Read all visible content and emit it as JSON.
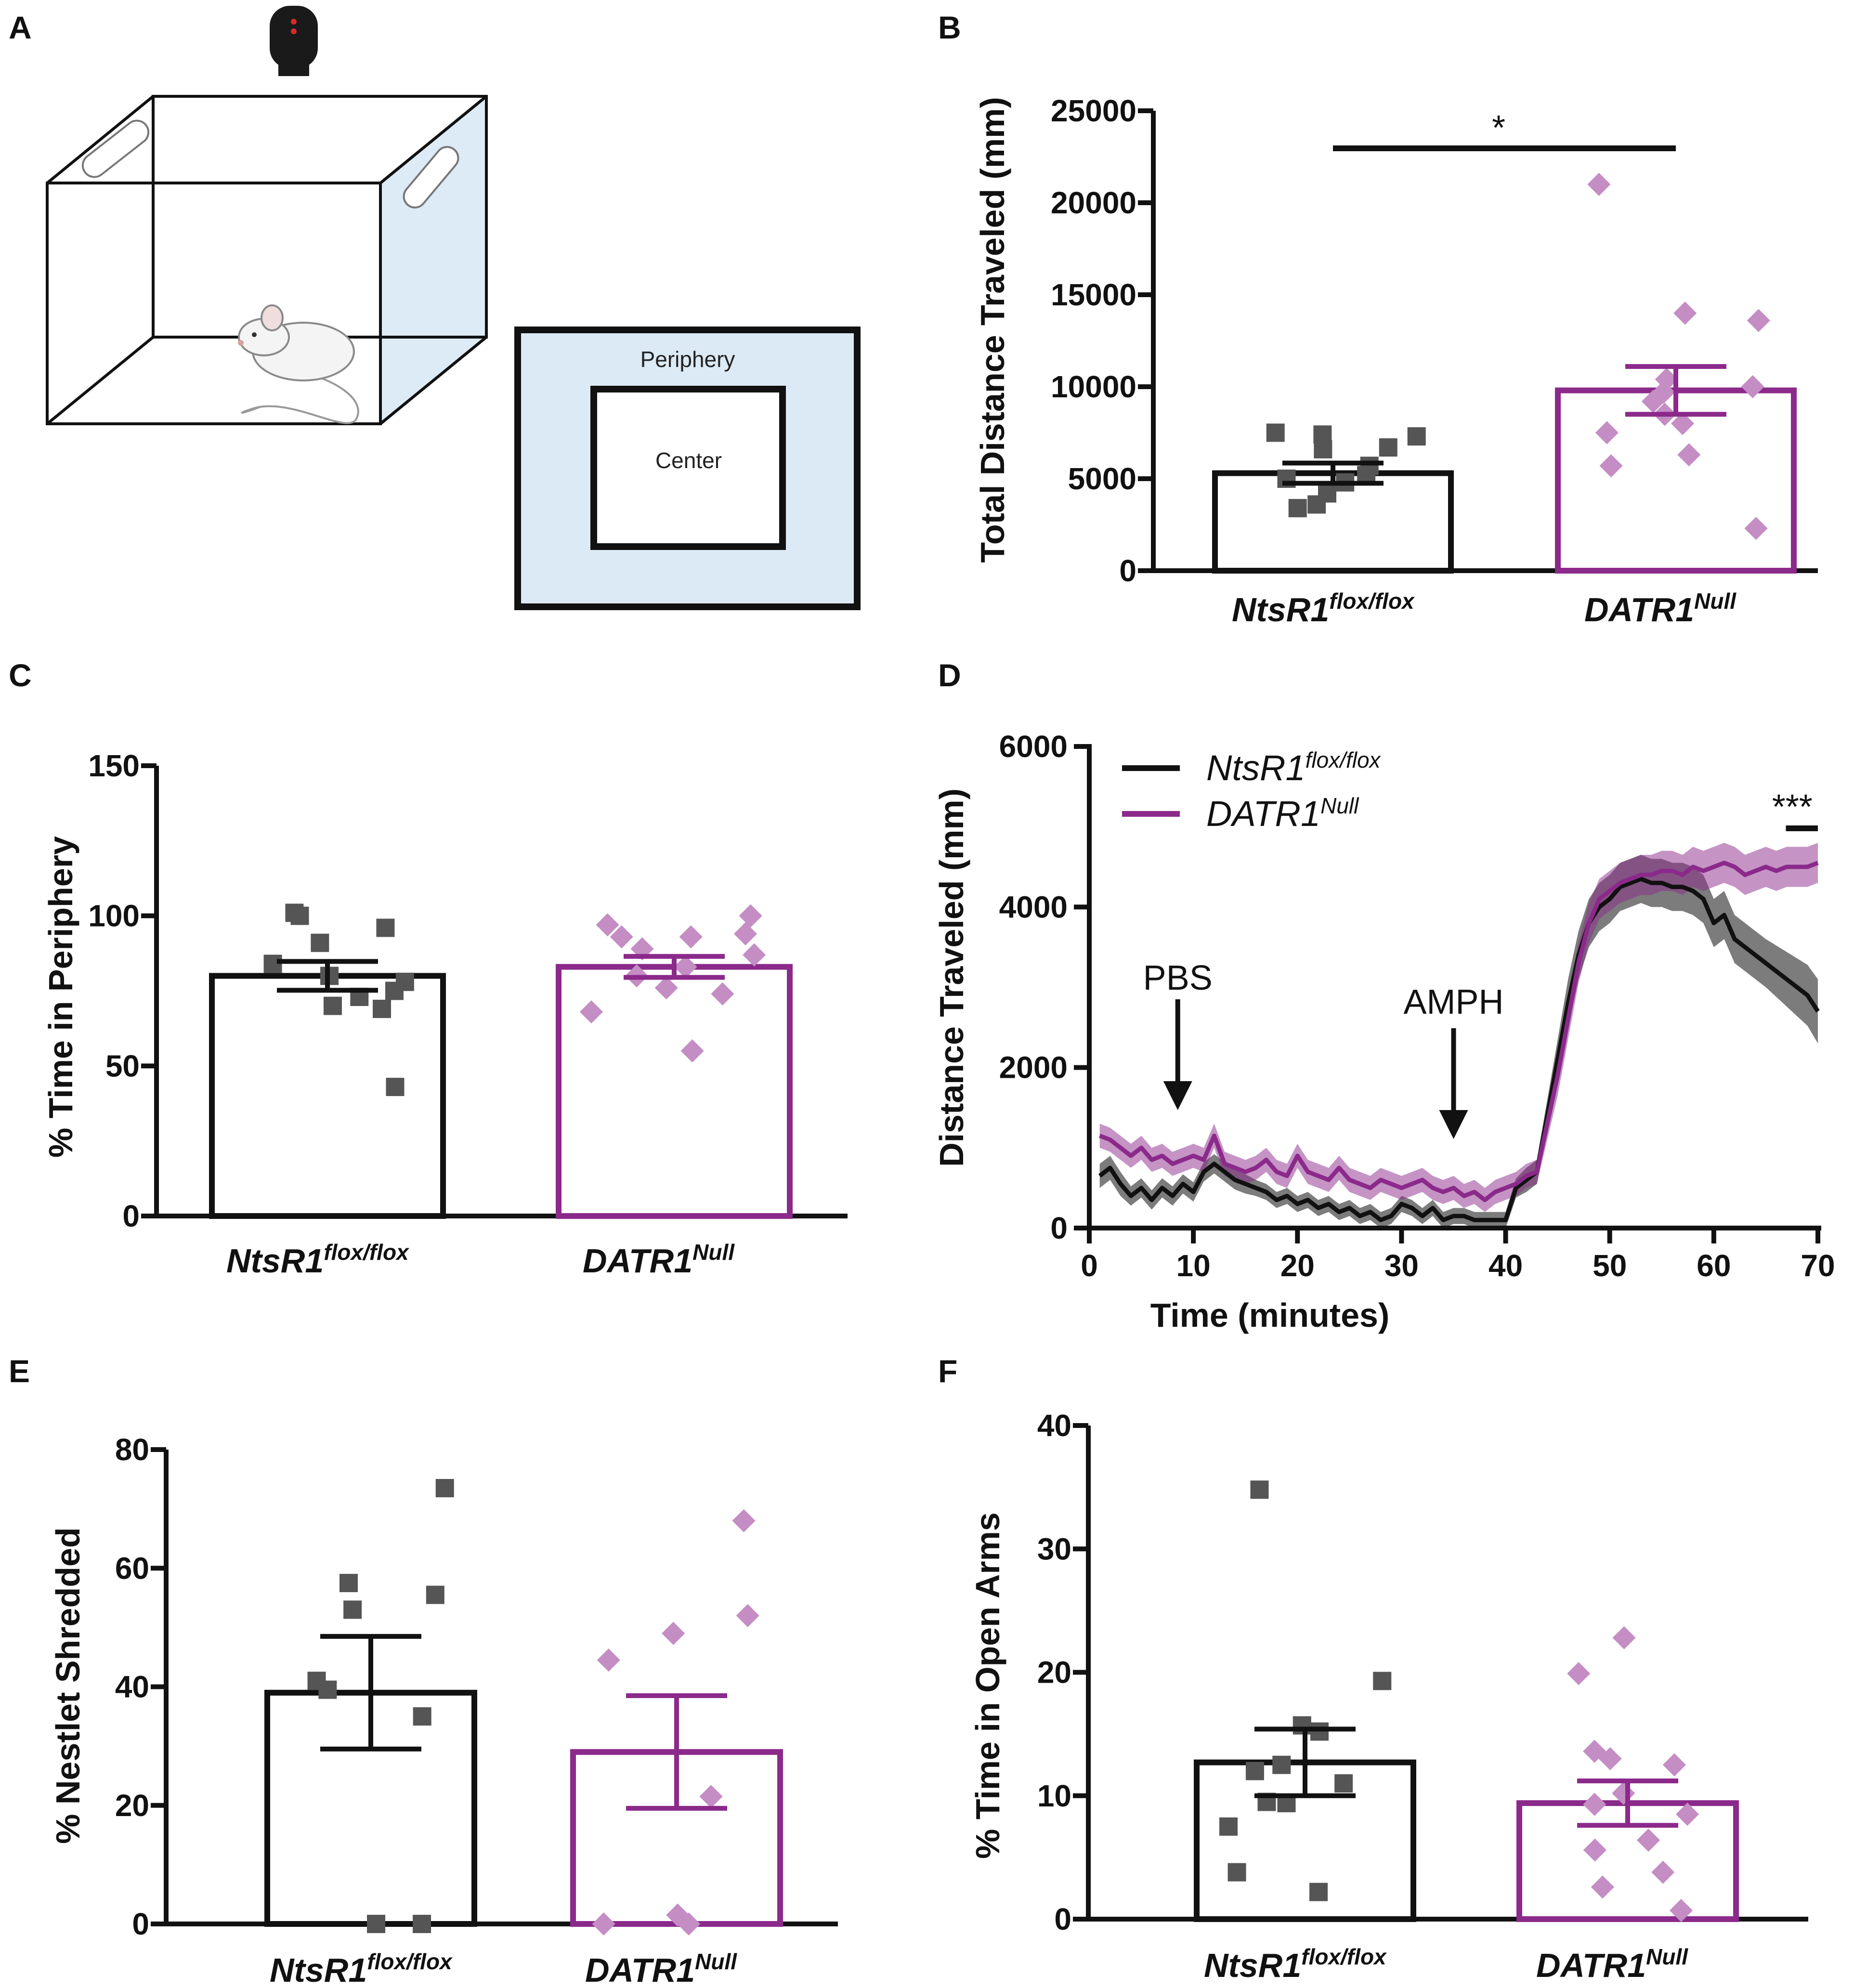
{
  "figure": {
    "panel_labels": [
      "A",
      "B",
      "C",
      "D",
      "E",
      "F"
    ],
    "schematic": {
      "periphery_label": "Periphery",
      "center_label": "Center"
    },
    "group_names": [
      "NtsR1",
      "DATR1"
    ],
    "group_sups": [
      "flox/flox",
      "Null"
    ],
    "colors": {
      "black": "#111111",
      "gray_marker": "#555555",
      "purple": "#8b2a8b",
      "purple_marker": "#c48dc4",
      "box_fill": "#dceaf5"
    }
  },
  "chart_data": [
    {
      "panel": "B",
      "type": "bar",
      "ylabel": "Total Distance Traveled (mm)",
      "ylim": [
        0,
        25000
      ],
      "yticks": [
        0,
        5000,
        10000,
        15000,
        20000,
        25000
      ],
      "categories": [
        "NtsR1flox/flox",
        "DATR1Null"
      ],
      "means": [
        5300,
        9800
      ],
      "sem": [
        550,
        1300
      ],
      "points": [
        [
          7500,
          7400,
          7300,
          6700,
          6600,
          5700,
          5200,
          5000,
          4800,
          4200,
          3600,
          3400
        ],
        [
          21000,
          14000,
          13600,
          10400,
          10000,
          9700,
          9200,
          8500,
          8000,
          7500,
          6300,
          5700,
          2300
        ]
      ],
      "significance": "*"
    },
    {
      "panel": "C",
      "type": "bar",
      "ylabel": "% Time in Periphery",
      "ylim": [
        0,
        150
      ],
      "yticks": [
        0,
        50,
        100,
        150
      ],
      "categories": [
        "NtsR1flox/flox",
        "DATR1Null"
      ],
      "means": [
        80,
        83
      ],
      "sem": [
        4.8,
        3.5
      ],
      "points": [
        [
          101,
          100,
          96,
          91,
          84,
          80,
          78,
          75,
          73,
          70,
          69,
          43
        ],
        [
          100,
          97,
          94,
          93,
          93,
          89,
          87,
          83,
          80,
          76,
          74,
          68,
          55
        ]
      ]
    },
    {
      "panel": "D",
      "type": "line",
      "xlabel": "Time (minutes)",
      "ylabel": "Distance Traveled (mm)",
      "xlim": [
        0,
        70
      ],
      "ylim": [
        0,
        6000
      ],
      "xticks": [
        0,
        10,
        20,
        30,
        40,
        50,
        60,
        70
      ],
      "yticks": [
        0,
        2000,
        4000,
        6000
      ],
      "series": [
        {
          "name": "NtsR1flox/flox",
          "x": [
            1,
            2,
            3,
            4,
            5,
            6,
            7,
            8,
            9,
            10,
            11,
            12,
            13,
            14,
            15,
            16,
            17,
            18,
            19,
            20,
            21,
            22,
            23,
            24,
            25,
            26,
            27,
            28,
            29,
            30,
            31,
            32,
            33,
            34,
            35,
            36,
            37,
            38,
            39,
            40,
            41,
            42,
            43,
            44,
            45,
            46,
            47,
            48,
            49,
            50,
            51,
            52,
            53,
            54,
            55,
            56,
            57,
            58,
            59,
            60,
            61,
            62,
            63,
            64,
            65,
            66,
            67,
            68,
            69,
            70
          ],
          "y": [
            650,
            750,
            550,
            400,
            500,
            350,
            500,
            400,
            550,
            450,
            700,
            800,
            700,
            600,
            550,
            500,
            450,
            350,
            400,
            300,
            350,
            250,
            300,
            200,
            250,
            150,
            200,
            100,
            150,
            300,
            250,
            150,
            250,
            100,
            150,
            150,
            100,
            100,
            100,
            100,
            500,
            600,
            700,
            1400,
            2100,
            2800,
            3400,
            3800,
            4000,
            4100,
            4250,
            4300,
            4350,
            4300,
            4300,
            4250,
            4250,
            4200,
            4100,
            3800,
            3900,
            3600,
            3500,
            3400,
            3300,
            3200,
            3100,
            3000,
            2900,
            2700
          ],
          "sem": [
            150,
            150,
            150,
            120,
            120,
            120,
            120,
            120,
            120,
            120,
            120,
            120,
            120,
            120,
            120,
            100,
            100,
            100,
            100,
            100,
            100,
            100,
            100,
            100,
            100,
            100,
            100,
            100,
            100,
            100,
            100,
            100,
            100,
            100,
            100,
            100,
            100,
            100,
            100,
            100,
            120,
            150,
            150,
            200,
            250,
            300,
            300,
            300,
            300,
            300,
            300,
            300,
            300,
            300,
            300,
            300,
            300,
            300,
            300,
            300,
            300,
            300,
            300,
            300,
            300,
            320,
            340,
            360,
            380,
            400
          ]
        },
        {
          "name": "DATR1Null",
          "x": [
            1,
            2,
            3,
            4,
            5,
            6,
            7,
            8,
            9,
            10,
            11,
            12,
            13,
            14,
            15,
            16,
            17,
            18,
            19,
            20,
            21,
            22,
            23,
            24,
            25,
            26,
            27,
            28,
            29,
            30,
            31,
            32,
            33,
            34,
            35,
            36,
            37,
            38,
            39,
            40,
            41,
            42,
            43,
            44,
            45,
            46,
            47,
            48,
            49,
            50,
            51,
            52,
            53,
            54,
            55,
            56,
            57,
            58,
            59,
            60,
            61,
            62,
            63,
            64,
            65,
            66,
            67,
            68,
            69,
            70
          ],
          "y": [
            1150,
            1100,
            1000,
            900,
            1000,
            850,
            900,
            800,
            850,
            900,
            850,
            1150,
            800,
            750,
            700,
            750,
            850,
            700,
            650,
            900,
            700,
            650,
            600,
            750,
            600,
            550,
            500,
            600,
            550,
            500,
            550,
            600,
            500,
            450,
            500,
            400,
            450,
            350,
            450,
            500,
            550,
            650,
            700,
            1300,
            1900,
            2600,
            3300,
            3800,
            4100,
            4200,
            4300,
            4350,
            4400,
            4400,
            4450,
            4450,
            4400,
            4500,
            4450,
            4500,
            4550,
            4500,
            4400,
            4450,
            4500,
            4450,
            4500,
            4500,
            4500,
            4550
          ],
          "sem": [
            150,
            150,
            150,
            150,
            150,
            150,
            150,
            150,
            150,
            150,
            150,
            150,
            150,
            150,
            150,
            150,
            150,
            150,
            150,
            150,
            150,
            150,
            150,
            150,
            150,
            150,
            150,
            150,
            150,
            150,
            150,
            150,
            150,
            150,
            150,
            150,
            150,
            150,
            150,
            150,
            150,
            150,
            150,
            200,
            250,
            250,
            250,
            250,
            250,
            250,
            250,
            250,
            250,
            250,
            250,
            250,
            250,
            250,
            250,
            250,
            250,
            250,
            250,
            250,
            250,
            250,
            250,
            250,
            250,
            250
          ]
        }
      ],
      "annotations": [
        {
          "text": "PBS",
          "x": 8.5
        },
        {
          "text": "AMPH",
          "x": 35
        },
        {
          "text": "***",
          "x_range": [
            66,
            70
          ]
        }
      ]
    },
    {
      "panel": "E",
      "type": "bar",
      "ylabel": "% Nestlet Shredded",
      "ylim": [
        0,
        80
      ],
      "yticks": [
        0,
        20,
        40,
        60,
        80
      ],
      "categories": [
        "NtsR1flox/flox",
        "DATR1Null"
      ],
      "means": [
        39,
        29
      ],
      "sem": [
        9.5,
        9.5
      ],
      "points": [
        [
          73.5,
          57.5,
          55.5,
          53,
          41,
          39.5,
          35,
          0,
          0
        ],
        [
          68,
          52,
          49,
          44.5,
          21.5,
          1.5,
          0,
          0
        ]
      ]
    },
    {
      "panel": "F",
      "type": "bar",
      "ylabel": "% Time in Open Arms",
      "ylim": [
        0,
        40
      ],
      "yticks": [
        0,
        10,
        20,
        30,
        40
      ],
      "categories": [
        "NtsR1flox/flox",
        "DATR1Null"
      ],
      "means": [
        12.7,
        9.4
      ],
      "sem": [
        2.7,
        1.8
      ],
      "points": [
        [
          34.8,
          19.3,
          15.7,
          15.2,
          12.5,
          12,
          11,
          9.5,
          9.4,
          7.5,
          3.8,
          2.2
        ],
        [
          22.8,
          19.9,
          13.6,
          13,
          12.5,
          10.2,
          9.3,
          8.5,
          6.4,
          5.6,
          3.8,
          2.6,
          0.7
        ]
      ]
    }
  ]
}
